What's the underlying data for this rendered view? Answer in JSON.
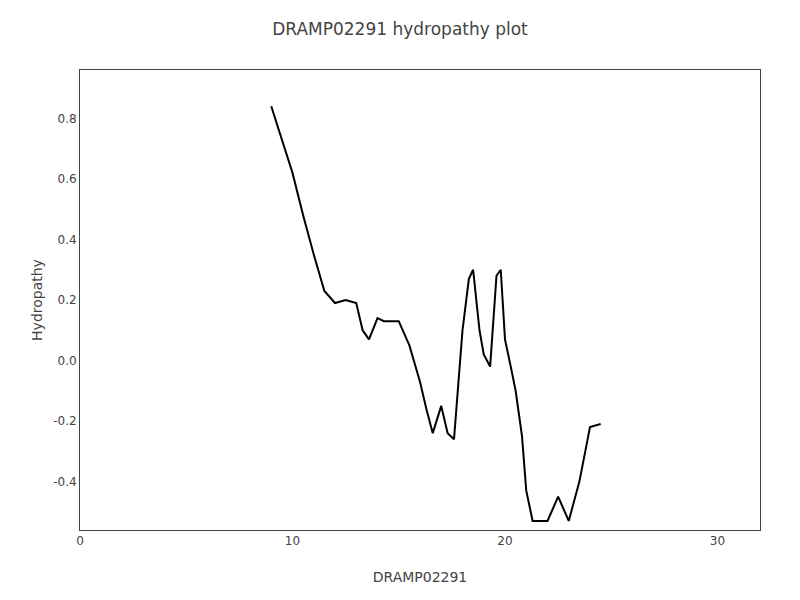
{
  "chart_data": {
    "type": "line",
    "title": "DRAMP02291 hydropathy plot",
    "xlabel": "DRAMP02291",
    "ylabel": "Hydropathy",
    "xlim": [
      0,
      32
    ],
    "ylim": [
      -0.56,
      0.96
    ],
    "xticks": [
      0,
      10,
      20,
      30
    ],
    "yticks": [
      -0.4,
      -0.2,
      {
        "value": 0.0,
        "label": "0.0"
      },
      0.2,
      0.4,
      0.6,
      0.8
    ],
    "color": "#000000",
    "grid": false,
    "x": [
      9.0,
      9.5,
      10.0,
      10.5,
      11.0,
      11.5,
      12.0,
      12.5,
      13.0,
      13.3,
      13.6,
      14.0,
      14.3,
      14.6,
      15.0,
      15.5,
      16.0,
      16.3,
      16.6,
      17.0,
      17.3,
      17.6,
      18.0,
      18.3,
      18.5,
      18.8,
      19.0,
      19.3,
      19.6,
      19.8,
      20.0,
      20.3,
      20.5,
      20.8,
      21.0,
      21.3,
      22.0,
      22.5,
      23.0,
      23.5,
      24.0,
      24.5
    ],
    "values": [
      0.84,
      0.73,
      0.62,
      0.48,
      0.35,
      0.23,
      0.19,
      0.2,
      0.19,
      0.1,
      0.07,
      0.14,
      0.13,
      0.13,
      0.13,
      0.05,
      -0.07,
      -0.16,
      -0.24,
      -0.15,
      -0.24,
      -0.26,
      0.1,
      0.27,
      0.3,
      0.1,
      0.02,
      -0.02,
      0.28,
      0.3,
      0.07,
      -0.03,
      -0.1,
      -0.25,
      -0.43,
      -0.53,
      -0.53,
      -0.45,
      -0.53,
      -0.4,
      -0.22,
      -0.21
    ]
  }
}
